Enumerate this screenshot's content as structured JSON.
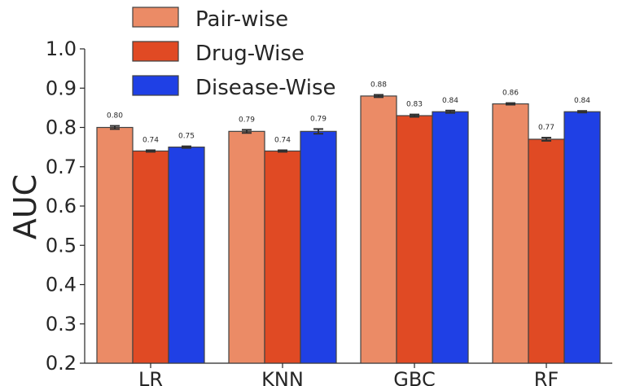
{
  "chart_data": {
    "type": "bar",
    "categories": [
      "LR",
      "KNN",
      "GBC",
      "RF"
    ],
    "series": [
      {
        "name": "Pair-wise",
        "color": "#eb8b66",
        "values": [
          0.8,
          0.79,
          0.88,
          0.86
        ],
        "labels": [
          "0.80",
          "0.79",
          "0.88",
          "0.86"
        ],
        "err": [
          0.004,
          0.004,
          0.003,
          0.002
        ]
      },
      {
        "name": "Drug-Wise",
        "color": "#e04a24",
        "values": [
          0.74,
          0.74,
          0.83,
          0.77
        ],
        "labels": [
          "0.74",
          "0.74",
          "0.83",
          "0.77"
        ],
        "err": [
          0.002,
          0.002,
          0.003,
          0.004
        ]
      },
      {
        "name": "Disease-Wise",
        "color": "#1f40e5",
        "values": [
          0.75,
          0.79,
          0.84,
          0.84
        ],
        "labels": [
          "0.75",
          "0.79",
          "0.84",
          "0.84"
        ],
        "err": [
          0.002,
          0.006,
          0.003,
          0.002
        ]
      }
    ],
    "ylabel": "AUC",
    "xlabel": "",
    "ylim": [
      0.2,
      1.0
    ],
    "yticks": [
      "0.2",
      "0.3",
      "0.4",
      "0.5",
      "0.6",
      "0.7",
      "0.8",
      "0.9",
      "1.0"
    ],
    "grid": false,
    "legend_position": "top-left"
  }
}
